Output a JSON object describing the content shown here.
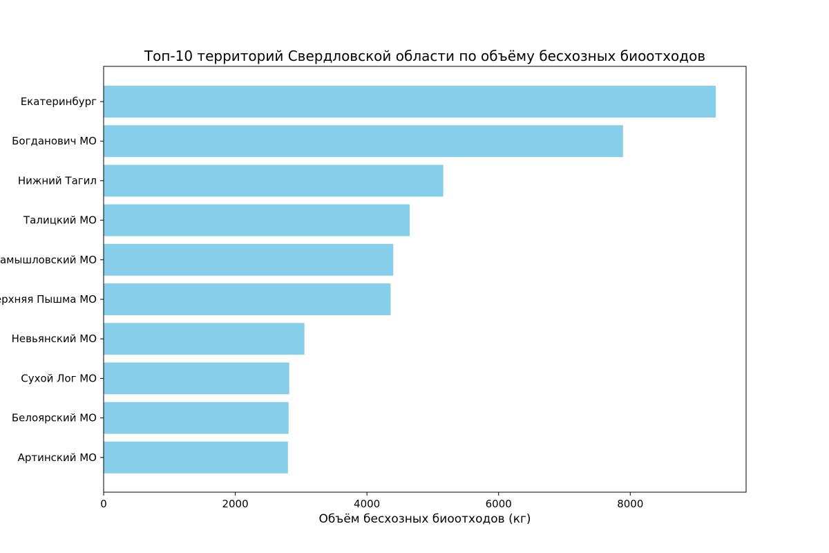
{
  "chart_data": {
    "type": "bar",
    "orientation": "horizontal",
    "title": "Топ-10 территорий Свердловской области по объёму бесхозных биоотходов",
    "xlabel": "Объём бесхозных биоотходов (кг)",
    "ylabel": "",
    "categories": [
      "Екатеринбург",
      "Богданович МО",
      "Нижний Тагил",
      "Талицкий МО",
      "Камышловский МО",
      "Верхняя Пышма МО",
      "Невьянский МО",
      "Сухой Лог МО",
      "Белоярский МО",
      "Артинский МО"
    ],
    "values": [
      9300,
      7890,
      5160,
      4650,
      4400,
      4360,
      3050,
      2820,
      2810,
      2800
    ],
    "xlim": [
      0,
      9760
    ],
    "xticks": [
      0,
      2000,
      4000,
      6000,
      8000
    ],
    "bar_color": "#87CEEB",
    "grid": false,
    "legend": "none"
  }
}
